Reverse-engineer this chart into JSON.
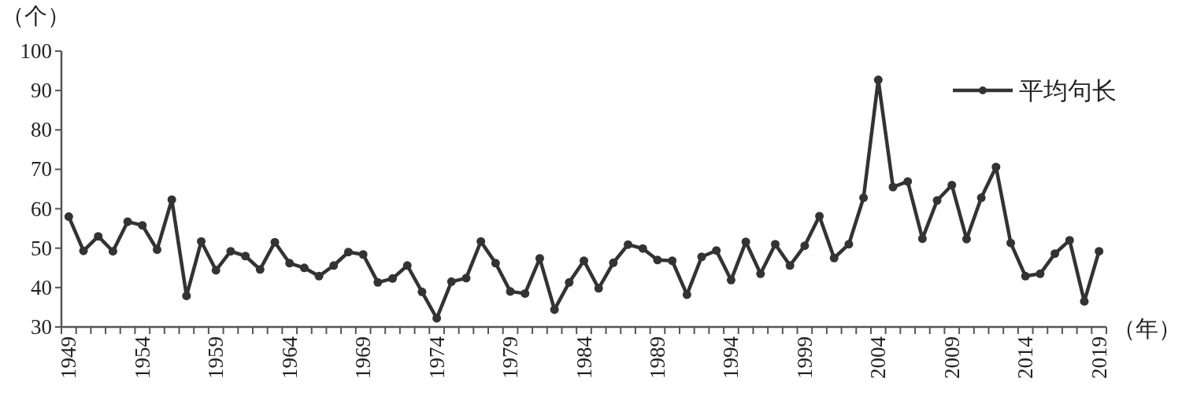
{
  "chart_data": {
    "type": "line",
    "ylabel": "（个）",
    "xlabel": "（年）",
    "categories": [
      "1949",
      null,
      null,
      null,
      null,
      "1954",
      null,
      null,
      null,
      null,
      "1959",
      null,
      null,
      null,
      null,
      "1964",
      null,
      null,
      null,
      null,
      "1969",
      null,
      null,
      null,
      null,
      "1974",
      null,
      null,
      null,
      null,
      "1979",
      null,
      null,
      null,
      null,
      "1984",
      null,
      null,
      null,
      null,
      "1989",
      null,
      null,
      null,
      null,
      "1994",
      null,
      null,
      null,
      null,
      "1999",
      null,
      null,
      null,
      null,
      "2004",
      null,
      null,
      null,
      null,
      "2009",
      null,
      null,
      null,
      null,
      "2014",
      null,
      null,
      null,
      null,
      "2019"
    ],
    "series": [
      {
        "name": "平均句长",
        "color": "#333333",
        "values": [
          58,
          49.3,
          53,
          49.2,
          56.7,
          55.8,
          49.6,
          62.3,
          37.9,
          51.7,
          44.4,
          49.2,
          48,
          44.6,
          51.5,
          46.2,
          45,
          42.9,
          45.6,
          49,
          48.4,
          41.3,
          42.3,
          45.6,
          38.9,
          32.2,
          41.5,
          42.4,
          51.7,
          46.2,
          39,
          38.5,
          47.4,
          34.4,
          41.3,
          46.8,
          39.8,
          46.3,
          50.9,
          49.9,
          47,
          46.8,
          38.2,
          47.8,
          49.4,
          41.9,
          51.6,
          43.5,
          51,
          45.6,
          50.6,
          58.1,
          47.5,
          51,
          62.8,
          92.7,
          65.5,
          66.9,
          52.4,
          62.1,
          66,
          52.3,
          62.8,
          70.6,
          51.3,
          42.9,
          43.5,
          48.6,
          52,
          36.5,
          49.2
        ]
      }
    ],
    "ylim": [
      30,
      100
    ],
    "yticks": [
      30,
      40,
      50,
      60,
      70,
      80,
      90,
      100
    ],
    "legend": "top right",
    "marker": "circle",
    "grid": false
  }
}
